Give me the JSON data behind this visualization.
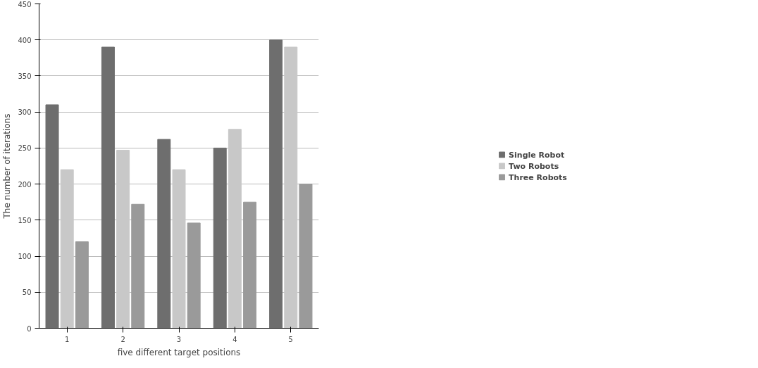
{
  "chart_data": {
    "type": "bar",
    "xlabel": "five different target positions",
    "ylabel": "The number of iterations",
    "categories": [
      "1",
      "2",
      "3",
      "4",
      "5"
    ],
    "series": [
      {
        "name": "Single Robot",
        "color": "#6e6e6e",
        "values": [
          310,
          390,
          262,
          250,
          400
        ]
      },
      {
        "name": "Two Robots",
        "color": "#c8c8c8",
        "values": [
          220,
          247,
          220,
          276,
          390
        ]
      },
      {
        "name": "Three Robots",
        "color": "#9a9a9a",
        "values": [
          120,
          172,
          146,
          175,
          200
        ]
      }
    ],
    "ylim": [
      0,
      450
    ],
    "yticks": [
      0,
      50,
      100,
      150,
      200,
      250,
      300,
      350,
      400,
      450
    ],
    "grid": "y",
    "legend": "right"
  }
}
